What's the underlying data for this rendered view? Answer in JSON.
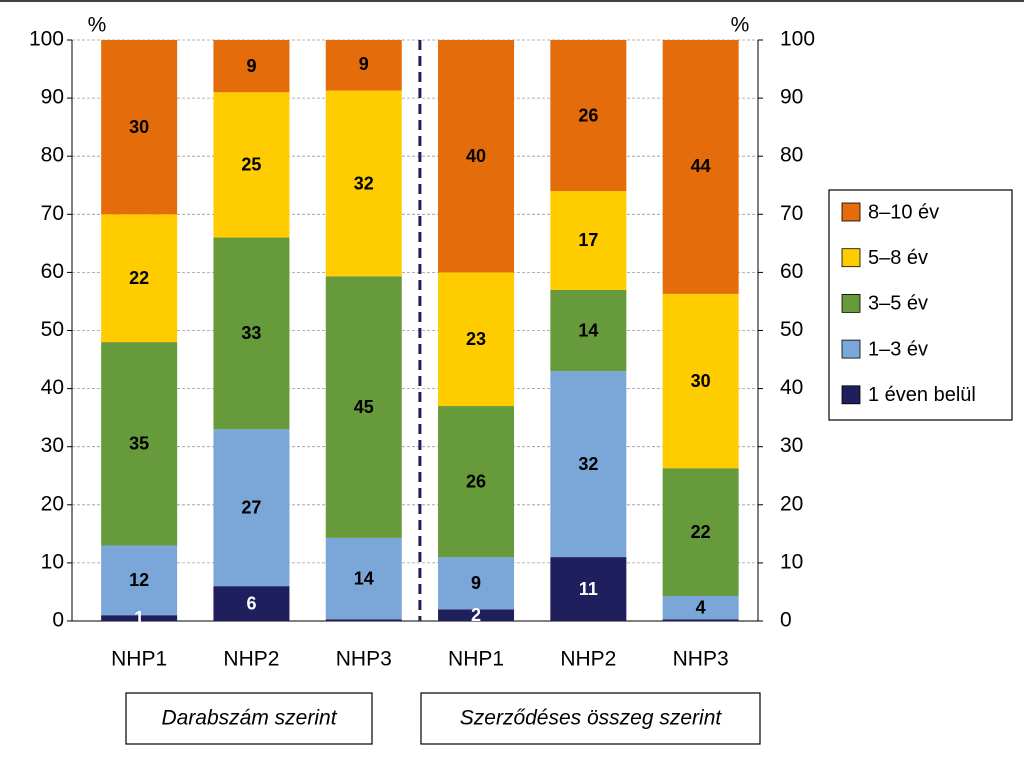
{
  "chart_data": {
    "type": "bar",
    "stacked": true,
    "categories": [
      "NHP1",
      "NHP2",
      "NHP3",
      "NHP1",
      "NHP2",
      "NHP3"
    ],
    "groups": [
      {
        "label": "Darabszám szerint",
        "span": 3
      },
      {
        "label": "Szerződéses összeg szerint",
        "span": 3
      }
    ],
    "ylabel": "%",
    "y2label": "%",
    "ylim": [
      0,
      100
    ],
    "yticks": [
      0,
      10,
      20,
      30,
      40,
      50,
      60,
      70,
      80,
      90,
      100
    ],
    "y2lim": [
      0,
      100
    ],
    "y2ticks": [
      0,
      10,
      20,
      30,
      40,
      50,
      60,
      70,
      80,
      90,
      100
    ],
    "grid": true,
    "legend": "right",
    "series": [
      {
        "name": "1 éven belül",
        "color": "#1f1f5e",
        "label_color": "#ffffff",
        "values": [
          1,
          6,
          0.3,
          2,
          11,
          0.3
        ],
        "value_labels": [
          "1",
          "6",
          null,
          "2",
          "11",
          null
        ]
      },
      {
        "name": "1–3 év",
        "color": "#7aa6d8",
        "label_color": "#000000",
        "values": [
          12,
          27,
          14,
          9,
          32,
          4
        ]
      },
      {
        "name": "3–5 év",
        "color": "#669a3a",
        "label_color": "#000000",
        "values": [
          35,
          33,
          45,
          26,
          14,
          22
        ]
      },
      {
        "name": "5–8 év",
        "color": "#ffcc00",
        "label_color": "#000000",
        "values": [
          22,
          25,
          32,
          23,
          17,
          30
        ]
      },
      {
        "name": "8–10 év",
        "color": "#e46c0a",
        "label_color": "#000000",
        "values": [
          30,
          9,
          9,
          40,
          26,
          44
        ]
      }
    ]
  }
}
